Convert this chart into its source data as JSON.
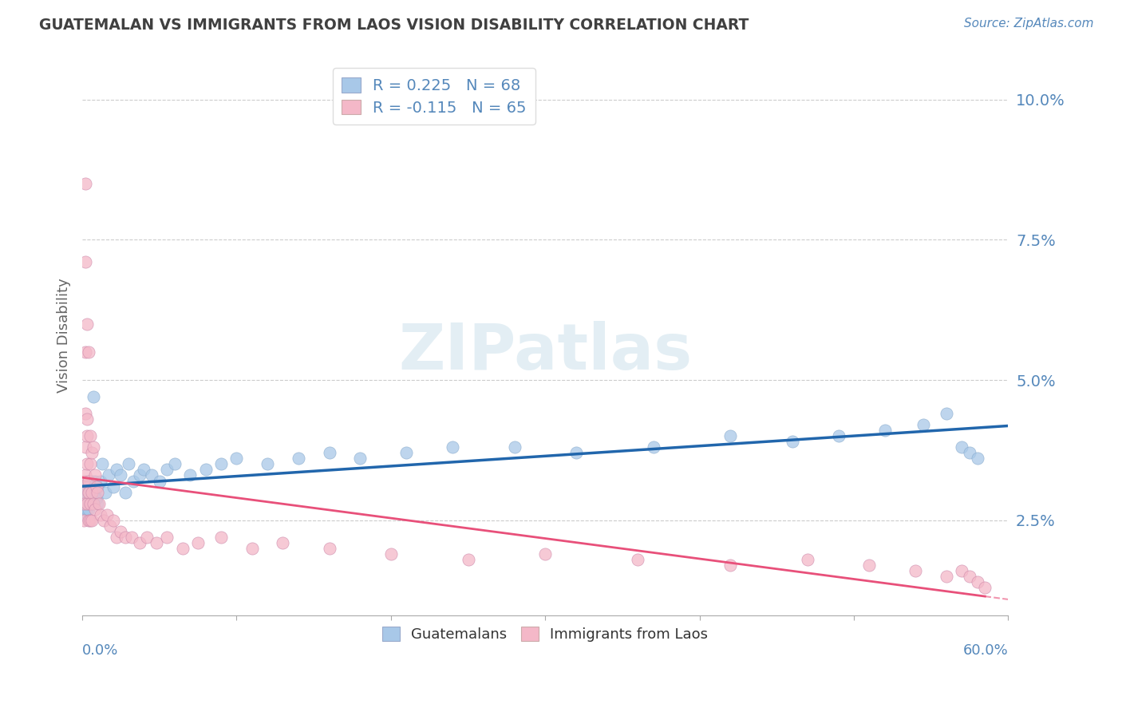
{
  "title": "GUATEMALAN VS IMMIGRANTS FROM LAOS VISION DISABILITY CORRELATION CHART",
  "source": "Source: ZipAtlas.com",
  "ylabel": "Vision Disability",
  "r_guatemalan": 0.225,
  "n_guatemalan": 68,
  "r_laos": -0.115,
  "n_laos": 65,
  "yticks": [
    0.025,
    0.05,
    0.075,
    0.1
  ],
  "ytick_labels": [
    "2.5%",
    "5.0%",
    "7.5%",
    "10.0%"
  ],
  "xlim": [
    0.0,
    0.6
  ],
  "ylim": [
    0.008,
    0.108
  ],
  "watermark": "ZIPatlas",
  "blue_color": "#a8c8e8",
  "pink_color": "#f4b8c8",
  "blue_line_color": "#2166ac",
  "pink_line_color": "#e8507a",
  "axis_label_color": "#5588bb",
  "title_color": "#404040",
  "guatemalan_x": [
    0.001,
    0.001,
    0.001,
    0.002,
    0.002,
    0.002,
    0.002,
    0.002,
    0.003,
    0.003,
    0.003,
    0.003,
    0.003,
    0.004,
    0.004,
    0.004,
    0.005,
    0.005,
    0.005,
    0.005,
    0.006,
    0.006,
    0.006,
    0.007,
    0.007,
    0.008,
    0.008,
    0.009,
    0.01,
    0.01,
    0.012,
    0.013,
    0.015,
    0.017,
    0.02,
    0.022,
    0.025,
    0.028,
    0.03,
    0.033,
    0.037,
    0.04,
    0.045,
    0.05,
    0.055,
    0.06,
    0.07,
    0.08,
    0.09,
    0.1,
    0.12,
    0.14,
    0.16,
    0.18,
    0.21,
    0.24,
    0.28,
    0.32,
    0.37,
    0.42,
    0.46,
    0.49,
    0.52,
    0.545,
    0.56,
    0.57,
    0.575,
    0.58
  ],
  "guatemalan_y": [
    0.028,
    0.03,
    0.026,
    0.032,
    0.027,
    0.029,
    0.031,
    0.028,
    0.03,
    0.027,
    0.031,
    0.028,
    0.029,
    0.03,
    0.028,
    0.027,
    0.029,
    0.031,
    0.03,
    0.028,
    0.032,
    0.028,
    0.03,
    0.031,
    0.047,
    0.03,
    0.032,
    0.029,
    0.031,
    0.028,
    0.032,
    0.035,
    0.03,
    0.033,
    0.031,
    0.034,
    0.033,
    0.03,
    0.035,
    0.032,
    0.033,
    0.034,
    0.033,
    0.032,
    0.034,
    0.035,
    0.033,
    0.034,
    0.035,
    0.036,
    0.035,
    0.036,
    0.037,
    0.036,
    0.037,
    0.038,
    0.038,
    0.037,
    0.038,
    0.04,
    0.039,
    0.04,
    0.041,
    0.042,
    0.044,
    0.038,
    0.037,
    0.036
  ],
  "laos_x": [
    0.001,
    0.001,
    0.001,
    0.001,
    0.002,
    0.002,
    0.002,
    0.002,
    0.002,
    0.002,
    0.003,
    0.003,
    0.003,
    0.003,
    0.003,
    0.004,
    0.004,
    0.004,
    0.004,
    0.005,
    0.005,
    0.005,
    0.005,
    0.006,
    0.006,
    0.006,
    0.007,
    0.007,
    0.008,
    0.008,
    0.009,
    0.01,
    0.011,
    0.012,
    0.014,
    0.016,
    0.018,
    0.02,
    0.022,
    0.025,
    0.028,
    0.032,
    0.037,
    0.042,
    0.048,
    0.055,
    0.065,
    0.075,
    0.09,
    0.11,
    0.13,
    0.16,
    0.2,
    0.25,
    0.3,
    0.36,
    0.42,
    0.47,
    0.51,
    0.54,
    0.56,
    0.57,
    0.575,
    0.58,
    0.585
  ],
  "laos_y": [
    0.03,
    0.028,
    0.032,
    0.025,
    0.085,
    0.071,
    0.055,
    0.044,
    0.033,
    0.038,
    0.06,
    0.043,
    0.04,
    0.035,
    0.028,
    0.055,
    0.032,
    0.03,
    0.025,
    0.04,
    0.035,
    0.028,
    0.025,
    0.037,
    0.03,
    0.025,
    0.038,
    0.028,
    0.033,
    0.027,
    0.031,
    0.03,
    0.028,
    0.026,
    0.025,
    0.026,
    0.024,
    0.025,
    0.022,
    0.023,
    0.022,
    0.022,
    0.021,
    0.022,
    0.021,
    0.022,
    0.02,
    0.021,
    0.022,
    0.02,
    0.021,
    0.02,
    0.019,
    0.018,
    0.019,
    0.018,
    0.017,
    0.018,
    0.017,
    0.016,
    0.015,
    0.016,
    0.015,
    0.014,
    0.013
  ]
}
